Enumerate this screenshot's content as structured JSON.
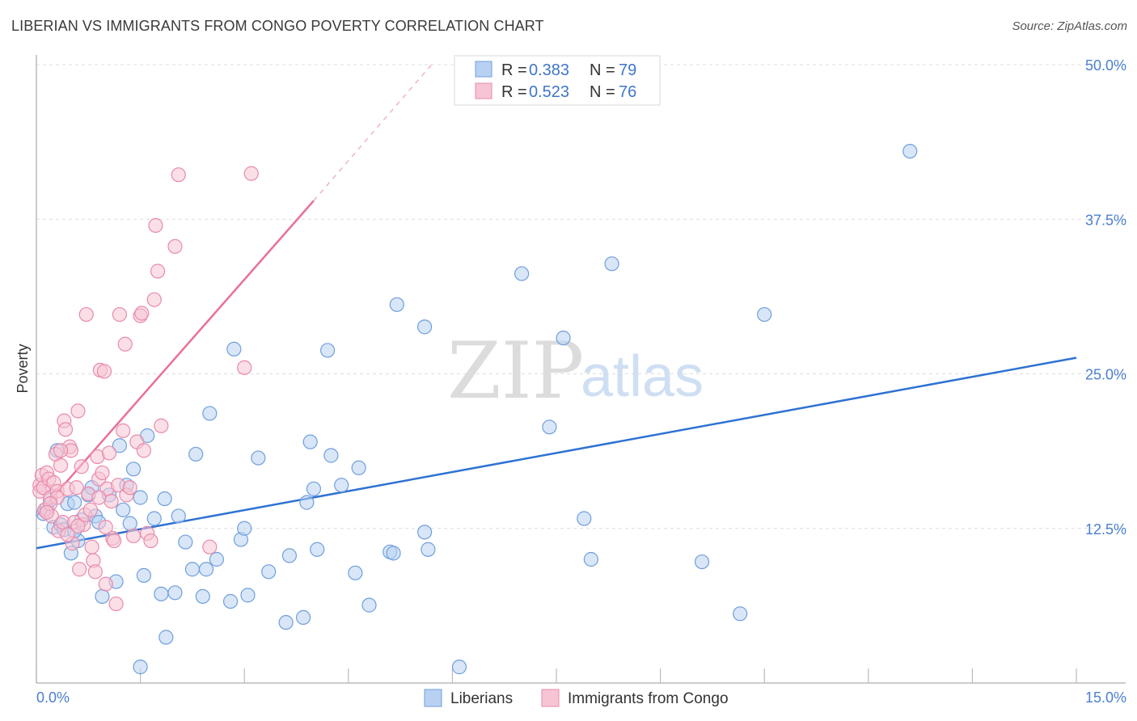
{
  "header": {
    "title": "LIBERIAN VS IMMIGRANTS FROM CONGO POVERTY CORRELATION CHART",
    "source": "Source: ZipAtlas.com"
  },
  "watermark": {
    "zip": "ZIP",
    "atlas": "atlas"
  },
  "colors": {
    "blue_fill": "#b8d1f3",
    "blue_stroke": "#6f9fdc",
    "blue_line": "#2e72d2",
    "pink_fill": "#f7c4d4",
    "pink_stroke": "#e98aab",
    "pink_line": "#e8709a",
    "tick_text": "#4a7fd0",
    "grid": "#dddddd"
  },
  "legend": {
    "r_label": "R =",
    "n_label": "N =",
    "rows": [
      {
        "r": "0.383",
        "n": "79",
        "color": "blue"
      },
      {
        "r": "0.523",
        "n": "76",
        "color": "pink"
      }
    ]
  },
  "bottom_legend": [
    "Liberians",
    "Immigrants from Congo"
  ],
  "chart_data": {
    "type": "scatter",
    "title": "LIBERIAN VS IMMIGRANTS FROM CONGO POVERTY CORRELATION CHART",
    "xlabel": "",
    "ylabel": "Poverty",
    "xlim": [
      0,
      15
    ],
    "ylim": [
      0,
      50
    ],
    "x_tick_labels": [
      "0.0%",
      "15.0%"
    ],
    "y_ticks": [
      12.5,
      25.0,
      37.5,
      50.0
    ],
    "y_tick_labels": [
      "12.5%",
      "25.0%",
      "37.5%",
      "50.0%"
    ],
    "grid": true,
    "legend_position": "top-center",
    "series": [
      {
        "name": "Liberians",
        "color": "blue",
        "r": 0.383,
        "n": 79,
        "trend": {
          "x": [
            0,
            15
          ],
          "y": [
            10.9,
            26.3
          ]
        },
        "points": [
          [
            0.1,
            13.7
          ],
          [
            0.15,
            14.1
          ],
          [
            0.2,
            14.8
          ],
          [
            0.25,
            12.6
          ],
          [
            0.3,
            18.8
          ],
          [
            0.35,
            12.8
          ],
          [
            0.4,
            12.4
          ],
          [
            0.45,
            14.5
          ],
          [
            0.5,
            10.5
          ],
          [
            0.55,
            14.6
          ],
          [
            0.6,
            11.5
          ],
          [
            0.65,
            13.2
          ],
          [
            0.75,
            15.2
          ],
          [
            0.8,
            15.8
          ],
          [
            0.85,
            13.5
          ],
          [
            0.9,
            13.0
          ],
          [
            0.95,
            7.0
          ],
          [
            1.05,
            15.2
          ],
          [
            1.15,
            8.2
          ],
          [
            1.2,
            19.2
          ],
          [
            1.25,
            14.0
          ],
          [
            1.3,
            16.0
          ],
          [
            1.35,
            12.9
          ],
          [
            1.4,
            17.3
          ],
          [
            1.5,
            1.3
          ],
          [
            1.5,
            15.0
          ],
          [
            1.55,
            8.7
          ],
          [
            1.6,
            20.0
          ],
          [
            1.7,
            13.3
          ],
          [
            1.8,
            7.2
          ],
          [
            1.85,
            14.9
          ],
          [
            1.87,
            3.7
          ],
          [
            2.0,
            7.3
          ],
          [
            2.05,
            13.5
          ],
          [
            2.15,
            11.4
          ],
          [
            2.25,
            9.2
          ],
          [
            2.3,
            18.5
          ],
          [
            2.4,
            7.0
          ],
          [
            2.45,
            9.2
          ],
          [
            2.5,
            21.8
          ],
          [
            2.6,
            10.0
          ],
          [
            2.8,
            6.6
          ],
          [
            2.85,
            27.0
          ],
          [
            2.95,
            11.6
          ],
          [
            3.0,
            12.5
          ],
          [
            3.05,
            7.1
          ],
          [
            3.2,
            18.2
          ],
          [
            3.35,
            9.0
          ],
          [
            3.6,
            4.9
          ],
          [
            3.65,
            10.3
          ],
          [
            3.85,
            5.3
          ],
          [
            3.9,
            14.6
          ],
          [
            3.95,
            19.5
          ],
          [
            4.0,
            15.7
          ],
          [
            4.05,
            10.8
          ],
          [
            4.2,
            26.9
          ],
          [
            4.25,
            18.4
          ],
          [
            4.4,
            16.0
          ],
          [
            4.6,
            8.9
          ],
          [
            4.65,
            17.4
          ],
          [
            4.8,
            6.3
          ],
          [
            5.1,
            10.6
          ],
          [
            5.15,
            10.5
          ],
          [
            5.2,
            30.6
          ],
          [
            5.6,
            12.2
          ],
          [
            5.6,
            28.8
          ],
          [
            5.65,
            10.8
          ],
          [
            6.1,
            1.3
          ],
          [
            7.0,
            33.1
          ],
          [
            7.4,
            20.7
          ],
          [
            7.6,
            27.9
          ],
          [
            7.9,
            13.3
          ],
          [
            8.0,
            10.0
          ],
          [
            8.3,
            33.9
          ],
          [
            9.6,
            9.8
          ],
          [
            10.15,
            5.6
          ],
          [
            10.5,
            29.8
          ],
          [
            12.6,
            43.0
          ],
          [
            0.55,
            12.3
          ]
        ]
      },
      {
        "name": "Immigrants from Congo",
        "color": "pink",
        "r": 0.523,
        "n": 76,
        "trend": {
          "x": [
            0,
            4.0
          ],
          "y": [
            13.5,
            39.0
          ]
        },
        "trend_dashed": {
          "x": [
            4.0,
            5.7
          ],
          "y": [
            39.0,
            50.0
          ]
        },
        "points": [
          [
            0.05,
            16.0
          ],
          [
            0.05,
            15.5
          ],
          [
            0.08,
            16.8
          ],
          [
            0.1,
            15.8
          ],
          [
            0.12,
            14.0
          ],
          [
            0.15,
            17.0
          ],
          [
            0.18,
            16.5
          ],
          [
            0.2,
            15.0
          ],
          [
            0.22,
            13.5
          ],
          [
            0.25,
            16.2
          ],
          [
            0.28,
            18.5
          ],
          [
            0.3,
            15.5
          ],
          [
            0.32,
            12.3
          ],
          [
            0.35,
            17.6
          ],
          [
            0.38,
            13.0
          ],
          [
            0.4,
            21.2
          ],
          [
            0.42,
            20.5
          ],
          [
            0.45,
            15.7
          ],
          [
            0.48,
            19.1
          ],
          [
            0.5,
            18.8
          ],
          [
            0.52,
            11.3
          ],
          [
            0.55,
            13.0
          ],
          [
            0.58,
            15.8
          ],
          [
            0.6,
            22.0
          ],
          [
            0.62,
            9.2
          ],
          [
            0.65,
            17.5
          ],
          [
            0.68,
            12.8
          ],
          [
            0.7,
            13.6
          ],
          [
            0.72,
            29.8
          ],
          [
            0.75,
            15.3
          ],
          [
            0.78,
            14.0
          ],
          [
            0.8,
            11.0
          ],
          [
            0.82,
            9.9
          ],
          [
            0.85,
            9.0
          ],
          [
            0.88,
            18.3
          ],
          [
            0.9,
            16.5
          ],
          [
            0.92,
            25.3
          ],
          [
            0.95,
            17.0
          ],
          [
            0.98,
            25.2
          ],
          [
            1.0,
            8.0
          ],
          [
            1.02,
            15.7
          ],
          [
            1.05,
            18.6
          ],
          [
            1.08,
            14.7
          ],
          [
            1.1,
            11.7
          ],
          [
            1.12,
            11.5
          ],
          [
            1.15,
            6.4
          ],
          [
            1.18,
            16.0
          ],
          [
            1.2,
            29.8
          ],
          [
            1.25,
            20.4
          ],
          [
            1.28,
            27.4
          ],
          [
            1.3,
            15.2
          ],
          [
            1.35,
            15.8
          ],
          [
            1.4,
            11.9
          ],
          [
            1.45,
            19.5
          ],
          [
            1.5,
            29.7
          ],
          [
            1.52,
            29.9
          ],
          [
            1.55,
            18.8
          ],
          [
            1.6,
            12.1
          ],
          [
            1.65,
            11.5
          ],
          [
            1.7,
            31.0
          ],
          [
            1.72,
            37.0
          ],
          [
            1.75,
            33.3
          ],
          [
            1.8,
            20.8
          ],
          [
            2.0,
            35.3
          ],
          [
            2.05,
            41.1
          ],
          [
            2.5,
            11.0
          ],
          [
            3.0,
            25.5
          ],
          [
            3.1,
            41.2
          ],
          [
            0.3,
            15.0
          ],
          [
            0.45,
            12.0
          ],
          [
            0.2,
            14.5
          ],
          [
            0.6,
            12.7
          ],
          [
            0.9,
            15.0
          ],
          [
            0.35,
            18.8
          ],
          [
            0.15,
            13.8
          ],
          [
            1.0,
            12.6
          ]
        ]
      }
    ]
  }
}
